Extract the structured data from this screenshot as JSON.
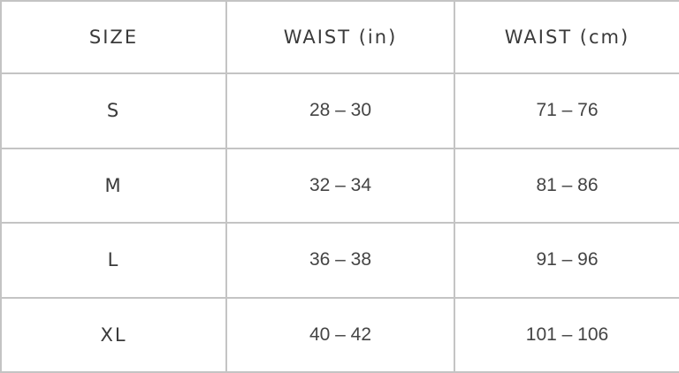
{
  "headers": [
    "SIZE",
    "WAIST (in)",
    "WAIST (cm)"
  ],
  "rows": [
    {
      "size": "S",
      "in": "28 – 30",
      "cm": "71 – 76"
    },
    {
      "size": "M",
      "in": "32 – 34",
      "cm": "81 – 86"
    },
    {
      "size": "L",
      "in": "36 – 38",
      "cm": "91 – 96"
    },
    {
      "size": "XL",
      "in": "40 – 42",
      "cm": "101 – 106"
    }
  ],
  "colors": {
    "border": "#c4c4c4",
    "text": "#3a3a3a"
  }
}
